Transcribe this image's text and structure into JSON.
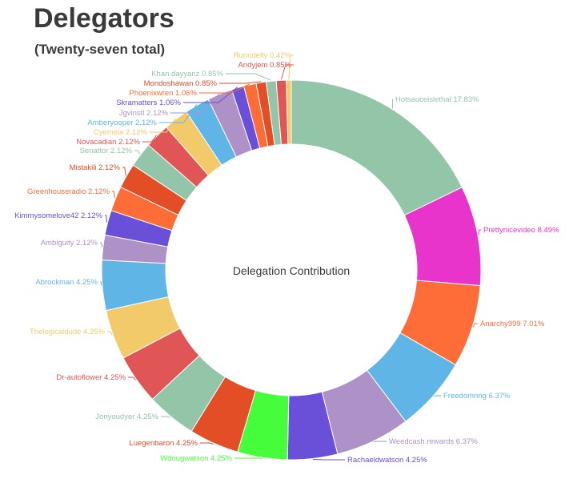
{
  "header": {
    "title": "Delegators",
    "subtitle": "(Twenty-seven total)"
  },
  "chart_data": {
    "type": "pie",
    "variant": "donut",
    "title": "Delegation Contribution",
    "legend": "none",
    "slices": [
      {
        "name": "Hotsauceislethal",
        "value": 17.83,
        "label": "Hotsauceislethal 17.83%",
        "color": "#93c5a8"
      },
      {
        "name": "Prettynicevideo",
        "value": 8.49,
        "label": "Prettynicevideo 8.49%",
        "color": "#e934cb"
      },
      {
        "name": "Anarchy999",
        "value": 7.01,
        "label": "Anarchy999 7.01%",
        "color": "#fe6c37"
      },
      {
        "name": "Freedomring",
        "value": 6.37,
        "label": "Freedomring 6.37%",
        "color": "#5fb6e6"
      },
      {
        "name": "Weedcash.rewards",
        "value": 6.37,
        "label": "Weedcash.rewards 6.37%",
        "color": "#ae91c7"
      },
      {
        "name": "Rachaeldwatson",
        "value": 4.25,
        "label": "Rachaeldwatson 4.25%",
        "color": "#6a4fd8"
      },
      {
        "name": "Wdougwatson",
        "value": 4.25,
        "label": "Wdougwatson 4.25%",
        "color": "#45fd3a"
      },
      {
        "name": "Luegenbaron",
        "value": 4.25,
        "label": "Luegenbaron 4.25%",
        "color": "#e34e26"
      },
      {
        "name": "Jonyoudyer",
        "value": 4.25,
        "label": "Jonyoudyer 4.25%",
        "color": "#93c5a8"
      },
      {
        "name": "Dr-autoflower",
        "value": 4.25,
        "label": "Dr-autoflower 4.25%",
        "color": "#e05656"
      },
      {
        "name": "Thelogicaldude",
        "value": 4.25,
        "label": "Thelogicaldude 4.25%",
        "color": "#f2ca6a"
      },
      {
        "name": "Abrockman",
        "value": 4.25,
        "label": "Abrockman 4.25%",
        "color": "#5fb6e6"
      },
      {
        "name": "Ambiguity",
        "value": 2.12,
        "label": "Ambiguity 2.12%",
        "color": "#ae91c7"
      },
      {
        "name": "Kimmysomelove42",
        "value": 2.12,
        "label": "Kimmysomelove42 2.12%",
        "color": "#6a4fd8"
      },
      {
        "name": "Greenhouseradio",
        "value": 2.12,
        "label": "Greenhouseradio 2.12%",
        "color": "#fe6c37"
      },
      {
        "name": "Mistakili",
        "value": 2.12,
        "label": "Mistakili 2.12%",
        "color": "#e34e26"
      },
      {
        "name": "Senattor",
        "value": 2.12,
        "label": "Senattor 2.12%",
        "color": "#93c5a8"
      },
      {
        "name": "Novacadian",
        "value": 2.12,
        "label": "Novacadian 2.12%",
        "color": "#e05656"
      },
      {
        "name": "Cyemela",
        "value": 2.12,
        "label": "Cyemela 2.12%",
        "color": "#f2ca6a"
      },
      {
        "name": "Amberyooper",
        "value": 2.12,
        "label": "Amberyooper 2.12%",
        "color": "#5fb6e6"
      },
      {
        "name": "Jgvinstl",
        "value": 2.12,
        "label": "Jgvinstl 2.12%",
        "color": "#ae91c7"
      },
      {
        "name": "Skramatters",
        "value": 1.06,
        "label": "Skramatters 1.06%",
        "color": "#6a4fd8"
      },
      {
        "name": "Phoenixwren",
        "value": 1.06,
        "label": "Phoenixwren 1.06%",
        "color": "#fe6c37"
      },
      {
        "name": "Mondoshawan",
        "value": 0.85,
        "label": "Mondoshawan 0.85%",
        "color": "#e34e26"
      },
      {
        "name": "Khan.dayyanz",
        "value": 0.85,
        "label": "Khan.dayyanz 0.85%",
        "color": "#93c5a8"
      },
      {
        "name": "Andyjem",
        "value": 0.85,
        "label": "Andyjem 0.85%",
        "color": "#e05656"
      },
      {
        "name": "Runridefly",
        "value": 0.42,
        "label": "Runridefly 0.42%",
        "color": "#f2ca6a"
      }
    ]
  }
}
